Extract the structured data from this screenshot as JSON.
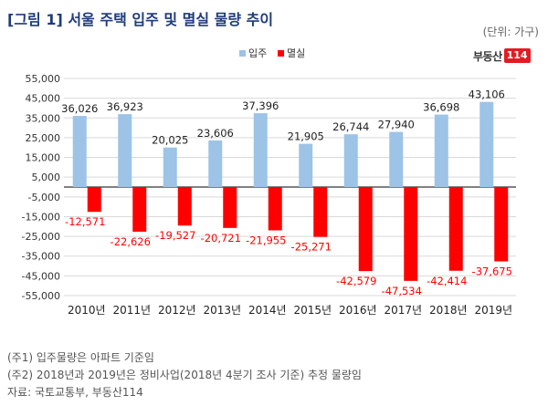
{
  "header": {
    "title": "[그림 1] 서울 주택 입주 및 멸실 물량 추이",
    "unit": "(단위: 가구)"
  },
  "logo": {
    "text": "부동산",
    "badge": "114"
  },
  "footnotes": {
    "note1": "(주1) 입주물량은 아파트 기준임",
    "note2": "(주2) 2018년과 2019년은 정비사업(2018년 4분기 조사 기준) 추정 물량임",
    "source": "자료: 국토교통부, 부동산114"
  },
  "colors": {
    "move_in": "#9dc3e6",
    "demolition": "#ff0000",
    "grid": "#d9d9d9"
  },
  "chart_data": {
    "type": "bar",
    "categories": [
      "2010년",
      "2011년",
      "2012년",
      "2013년",
      "2014년",
      "2015년",
      "2016년",
      "2017년",
      "2018년",
      "2019년"
    ],
    "series": [
      {
        "name": "입주",
        "values": [
          36026,
          36923,
          20025,
          23606,
          37396,
          21905,
          26744,
          27940,
          36698,
          43106
        ]
      },
      {
        "name": "멸실",
        "values": [
          -12571,
          -22626,
          -19527,
          -20721,
          -21955,
          -25271,
          -42579,
          -47534,
          -42414,
          -37675
        ]
      }
    ],
    "data_labels": {
      "move_in": [
        "36,026",
        "36,923",
        "20,025",
        "23,606",
        "37,396",
        "21,905",
        "26,744",
        "27,940",
        "36,698",
        "43,106"
      ],
      "demolition": [
        "-12,571",
        "-22,626",
        "-19,527",
        "-20,721",
        "-21,955",
        "-25,271",
        "-42,579",
        "-47,534",
        "-42,414",
        "-37,675"
      ]
    },
    "yticks": [
      55000,
      45000,
      35000,
      25000,
      15000,
      5000,
      -5000,
      -15000,
      -25000,
      -35000,
      -45000,
      -55000
    ],
    "ytick_labels": [
      "55,000",
      "45,000",
      "35,000",
      "25,000",
      "15,000",
      "5,000",
      "-5,000",
      "-15,000",
      "-25,000",
      "-35,000",
      "-45,000",
      "-55,000"
    ],
    "ylim": [
      -55000,
      55000
    ],
    "legend_position": "top-center",
    "grid": true,
    "xlabel": "",
    "ylabel": ""
  }
}
